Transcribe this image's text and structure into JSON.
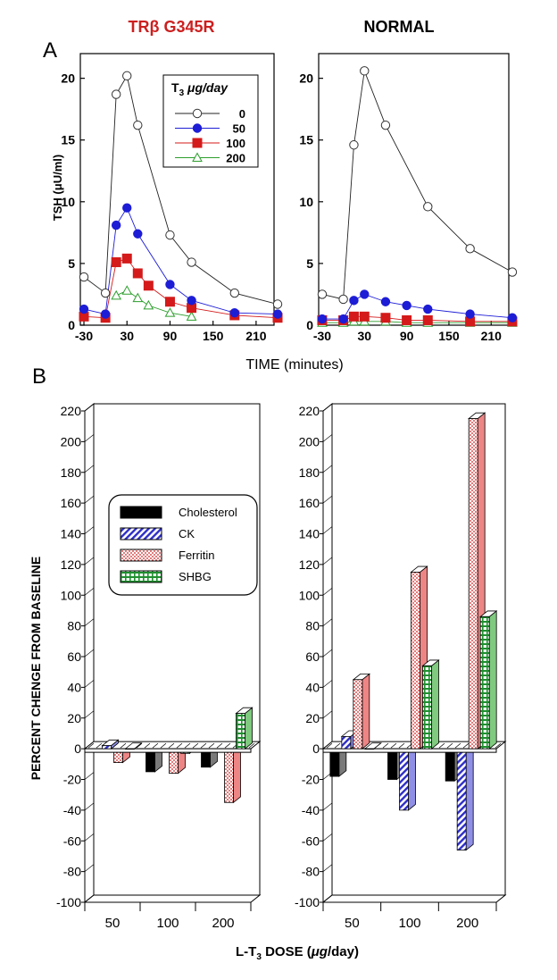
{
  "titles": {
    "left_prefix": "TR",
    "left_beta": "β",
    "left_suffix": " G345R",
    "right": "NORMAL",
    "left_color": "#cc1f1f"
  },
  "panel_labels": {
    "a": "A",
    "b": "B"
  },
  "legend_a": {
    "header_main": "T",
    "header_sub": "3",
    "header_unit": " μg/day",
    "entries": [
      "0",
      "50",
      "100",
      "200"
    ]
  },
  "legend_b": {
    "entries": [
      "Cholesterol",
      "CK",
      "Ferritin",
      "SHBG"
    ]
  },
  "colors": {
    "dose_0": "#000000",
    "dose_50": "#1d1dd6",
    "dose_100": "#d41a1a",
    "dose_200": "#2d9e2d",
    "ck": "#2d2dc8",
    "ck_side": "#8f8fe6",
    "ferritin_face": "#ffffff",
    "ferritin_dots": "#d02020",
    "ferritin_side": "#ee8585",
    "shbg": "#1f8f2f",
    "shbg_side": "#7fca7f",
    "cholesterol": "#000000",
    "cholesterol_side": "#7a7a7a"
  },
  "chart_data": [
    {
      "type": "line",
      "title": "TRβ G345R",
      "xlabel": "TIME (minutes)",
      "ylabel": "TSH  (μU/ml)",
      "xlim": [
        -35,
        235
      ],
      "ylim": [
        0,
        22
      ],
      "x_ticks": [
        -30,
        30,
        90,
        150,
        210
      ],
      "y_ticks": [
        0,
        5,
        10,
        15,
        20
      ],
      "legend_title": "T3 μg/day",
      "series": [
        {
          "name": "0",
          "marker": "circle-open",
          "x": [
            -30,
            0,
            15,
            30,
            45,
            90,
            120,
            180,
            240
          ],
          "y": [
            3.9,
            2.6,
            18.7,
            20.2,
            16.2,
            7.3,
            5.1,
            2.6,
            1.7
          ]
        },
        {
          "name": "50",
          "marker": "circle-filled",
          "x": [
            -30,
            0,
            15,
            30,
            45,
            90,
            120,
            180,
            240
          ],
          "y": [
            1.3,
            0.9,
            8.1,
            9.5,
            7.4,
            3.3,
            2.0,
            1.0,
            0.9
          ]
        },
        {
          "name": "100",
          "marker": "square-filled",
          "x": [
            -30,
            0,
            15,
            30,
            45,
            60,
            90,
            120,
            180,
            240
          ],
          "y": [
            0.7,
            0.6,
            5.1,
            5.4,
            4.2,
            3.2,
            1.9,
            1.4,
            0.8,
            0.6
          ]
        },
        {
          "name": "200",
          "marker": "triangle-open",
          "x": [
            15,
            30,
            45,
            60,
            90,
            120
          ],
          "y": [
            2.4,
            2.8,
            2.2,
            1.6,
            1.0,
            0.7
          ]
        }
      ]
    },
    {
      "type": "line",
      "title": "NORMAL",
      "xlabel": "TIME (minutes)",
      "ylabel": "TSH  (μU/ml)",
      "xlim": [
        -35,
        235
      ],
      "ylim": [
        0,
        22
      ],
      "x_ticks": [
        -30,
        30,
        90,
        150,
        210
      ],
      "y_ticks": [
        0,
        5,
        10,
        15,
        20
      ],
      "series": [
        {
          "name": "0",
          "marker": "circle-open",
          "x": [
            -30,
            0,
            15,
            30,
            60,
            120,
            180,
            240
          ],
          "y": [
            2.5,
            2.1,
            14.6,
            20.6,
            16.2,
            9.6,
            6.2,
            4.3
          ]
        },
        {
          "name": "50",
          "marker": "circle-filled",
          "x": [
            -30,
            0,
            15,
            30,
            60,
            90,
            120,
            180,
            240
          ],
          "y": [
            0.5,
            0.5,
            2.0,
            2.5,
            1.9,
            1.6,
            1.3,
            0.9,
            0.6
          ]
        },
        {
          "name": "100",
          "marker": "square-filled",
          "x": [
            -30,
            0,
            15,
            30,
            60,
            90,
            120,
            180,
            240
          ],
          "y": [
            0.4,
            0.4,
            0.7,
            0.7,
            0.6,
            0.4,
            0.4,
            0.3,
            0.3
          ]
        },
        {
          "name": "200",
          "marker": "triangle-open",
          "x": [
            -30,
            0,
            15,
            30,
            60,
            90,
            120,
            180,
            240
          ],
          "y": [
            0.2,
            0.2,
            0.3,
            0.3,
            0.3,
            0.2,
            0.2,
            0.2,
            0.2
          ]
        }
      ]
    },
    {
      "type": "bar",
      "title": "TRβ G345R",
      "xlabel": "L-T3 DOSE (μg/day)",
      "ylabel": "PERCENT CHENGE FROM BASELINE",
      "categories": [
        "50",
        "100",
        "200"
      ],
      "ylim": [
        -100,
        220
      ],
      "y_ticks": [
        -100,
        -80,
        -60,
        -40,
        -20,
        0,
        20,
        40,
        60,
        80,
        100,
        120,
        140,
        160,
        180,
        200,
        220
      ],
      "series": [
        {
          "name": "Cholesterol",
          "values": [
            -2,
            -15,
            -12
          ]
        },
        {
          "name": "CK",
          "values": [
            2,
            -2,
            -2
          ]
        },
        {
          "name": "Ferritin",
          "values": [
            -9,
            -16,
            -35
          ]
        },
        {
          "name": "SHBG",
          "values": [
            0,
            -3,
            23
          ]
        }
      ]
    },
    {
      "type": "bar",
      "title": "NORMAL",
      "xlabel": "L-T3 DOSE (μg/day)",
      "ylabel": "PERCENT CHENGE FROM BASELINE",
      "categories": [
        "50",
        "100",
        "200"
      ],
      "ylim": [
        -100,
        220
      ],
      "y_ticks": [
        -100,
        -80,
        -60,
        -40,
        -20,
        0,
        20,
        40,
        60,
        80,
        100,
        120,
        140,
        160,
        180,
        200,
        220
      ],
      "series": [
        {
          "name": "Cholesterol",
          "values": [
            -18,
            -20,
            -21
          ]
        },
        {
          "name": "CK",
          "values": [
            8,
            -40,
            -66
          ]
        },
        {
          "name": "Ferritin",
          "values": [
            45,
            115,
            215
          ]
        },
        {
          "name": "SHBG",
          "values": [
            0,
            54,
            86
          ]
        }
      ]
    }
  ]
}
